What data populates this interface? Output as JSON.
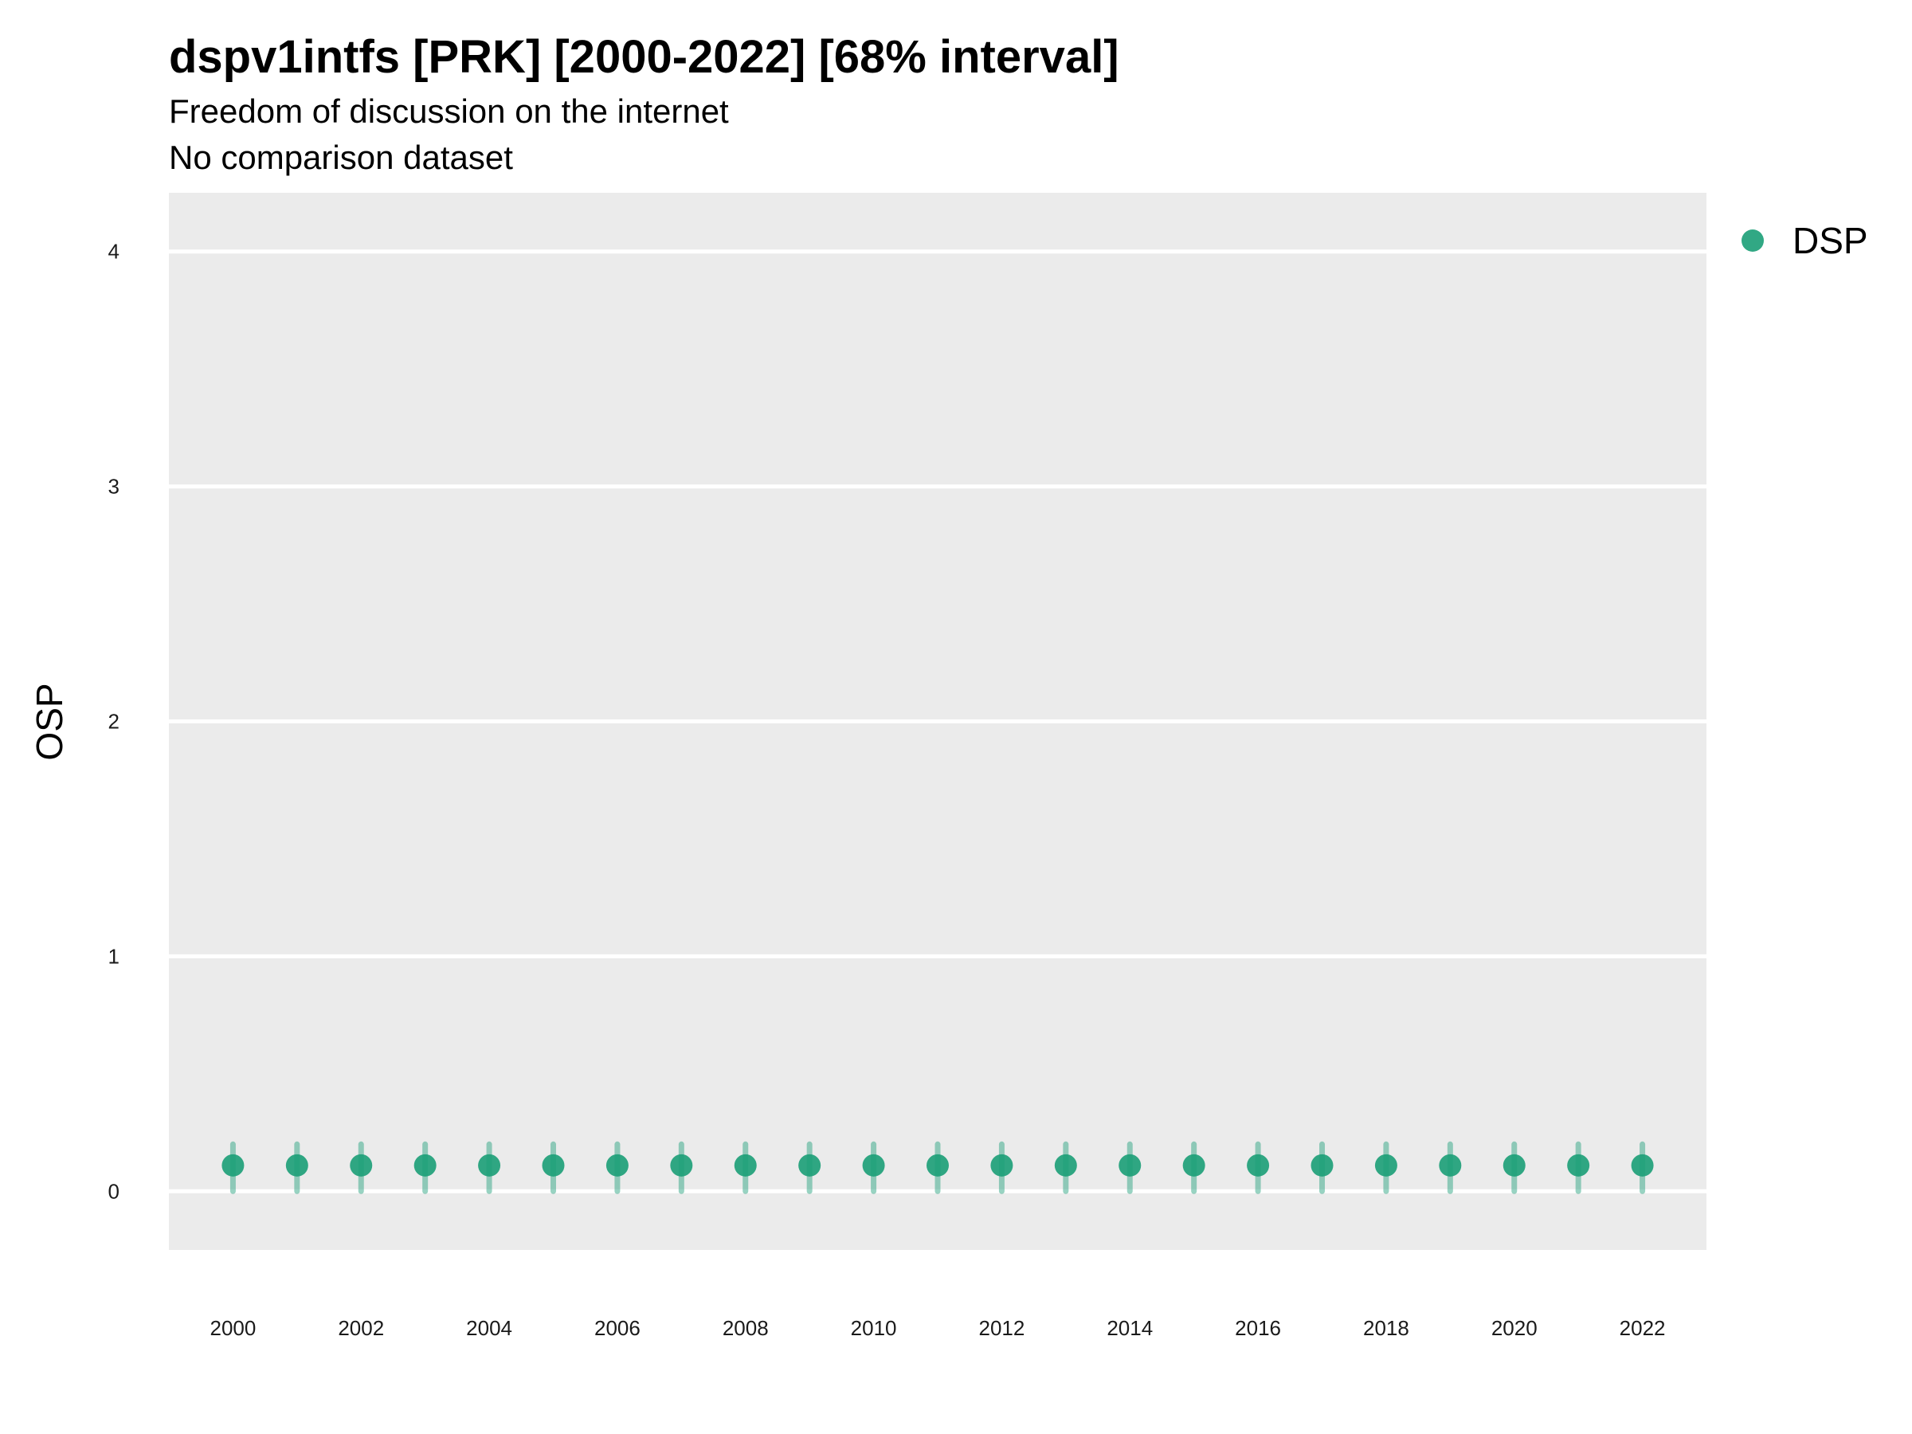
{
  "title": "dspv1intfs [PRK] [2000-2022] [68% interval]",
  "subtitle": "Freedom of discussion on the internet",
  "subtitle2": "No comparison dataset",
  "chart_data": {
    "type": "scatter",
    "ylabel": "OSP",
    "xlabel": "",
    "ylim": [
      -0.25,
      4.25
    ],
    "xlim": [
      1999,
      2023
    ],
    "yticks": [
      0,
      1,
      2,
      3,
      4
    ],
    "xticks": [
      2000,
      2002,
      2004,
      2006,
      2008,
      2010,
      2012,
      2014,
      2016,
      2018,
      2020,
      2022
    ],
    "grid": true,
    "legend": "right",
    "series": [
      {
        "name": "DSP",
        "color": "#1b9e77",
        "x": [
          2000,
          2001,
          2002,
          2003,
          2004,
          2005,
          2006,
          2007,
          2008,
          2009,
          2010,
          2011,
          2012,
          2013,
          2014,
          2015,
          2016,
          2017,
          2018,
          2019,
          2020,
          2021,
          2022
        ],
        "y": [
          0.11,
          0.11,
          0.11,
          0.11,
          0.11,
          0.11,
          0.11,
          0.11,
          0.11,
          0.11,
          0.11,
          0.11,
          0.11,
          0.11,
          0.11,
          0.11,
          0.11,
          0.11,
          0.11,
          0.11,
          0.11,
          0.11,
          0.11
        ],
        "lower": [
          0.0,
          0.0,
          0.0,
          0.0,
          0.0,
          0.0,
          0.0,
          0.0,
          0.0,
          0.0,
          0.0,
          0.0,
          0.0,
          0.0,
          0.0,
          0.0,
          0.0,
          0.0,
          0.0,
          0.0,
          0.0,
          0.0,
          0.0
        ],
        "upper": [
          0.2,
          0.2,
          0.2,
          0.2,
          0.2,
          0.2,
          0.2,
          0.2,
          0.2,
          0.2,
          0.2,
          0.2,
          0.2,
          0.2,
          0.2,
          0.2,
          0.2,
          0.2,
          0.2,
          0.2,
          0.2,
          0.2,
          0.2
        ]
      }
    ],
    "colors": {
      "panel": "#ebebeb",
      "grid": "#ffffff"
    }
  }
}
